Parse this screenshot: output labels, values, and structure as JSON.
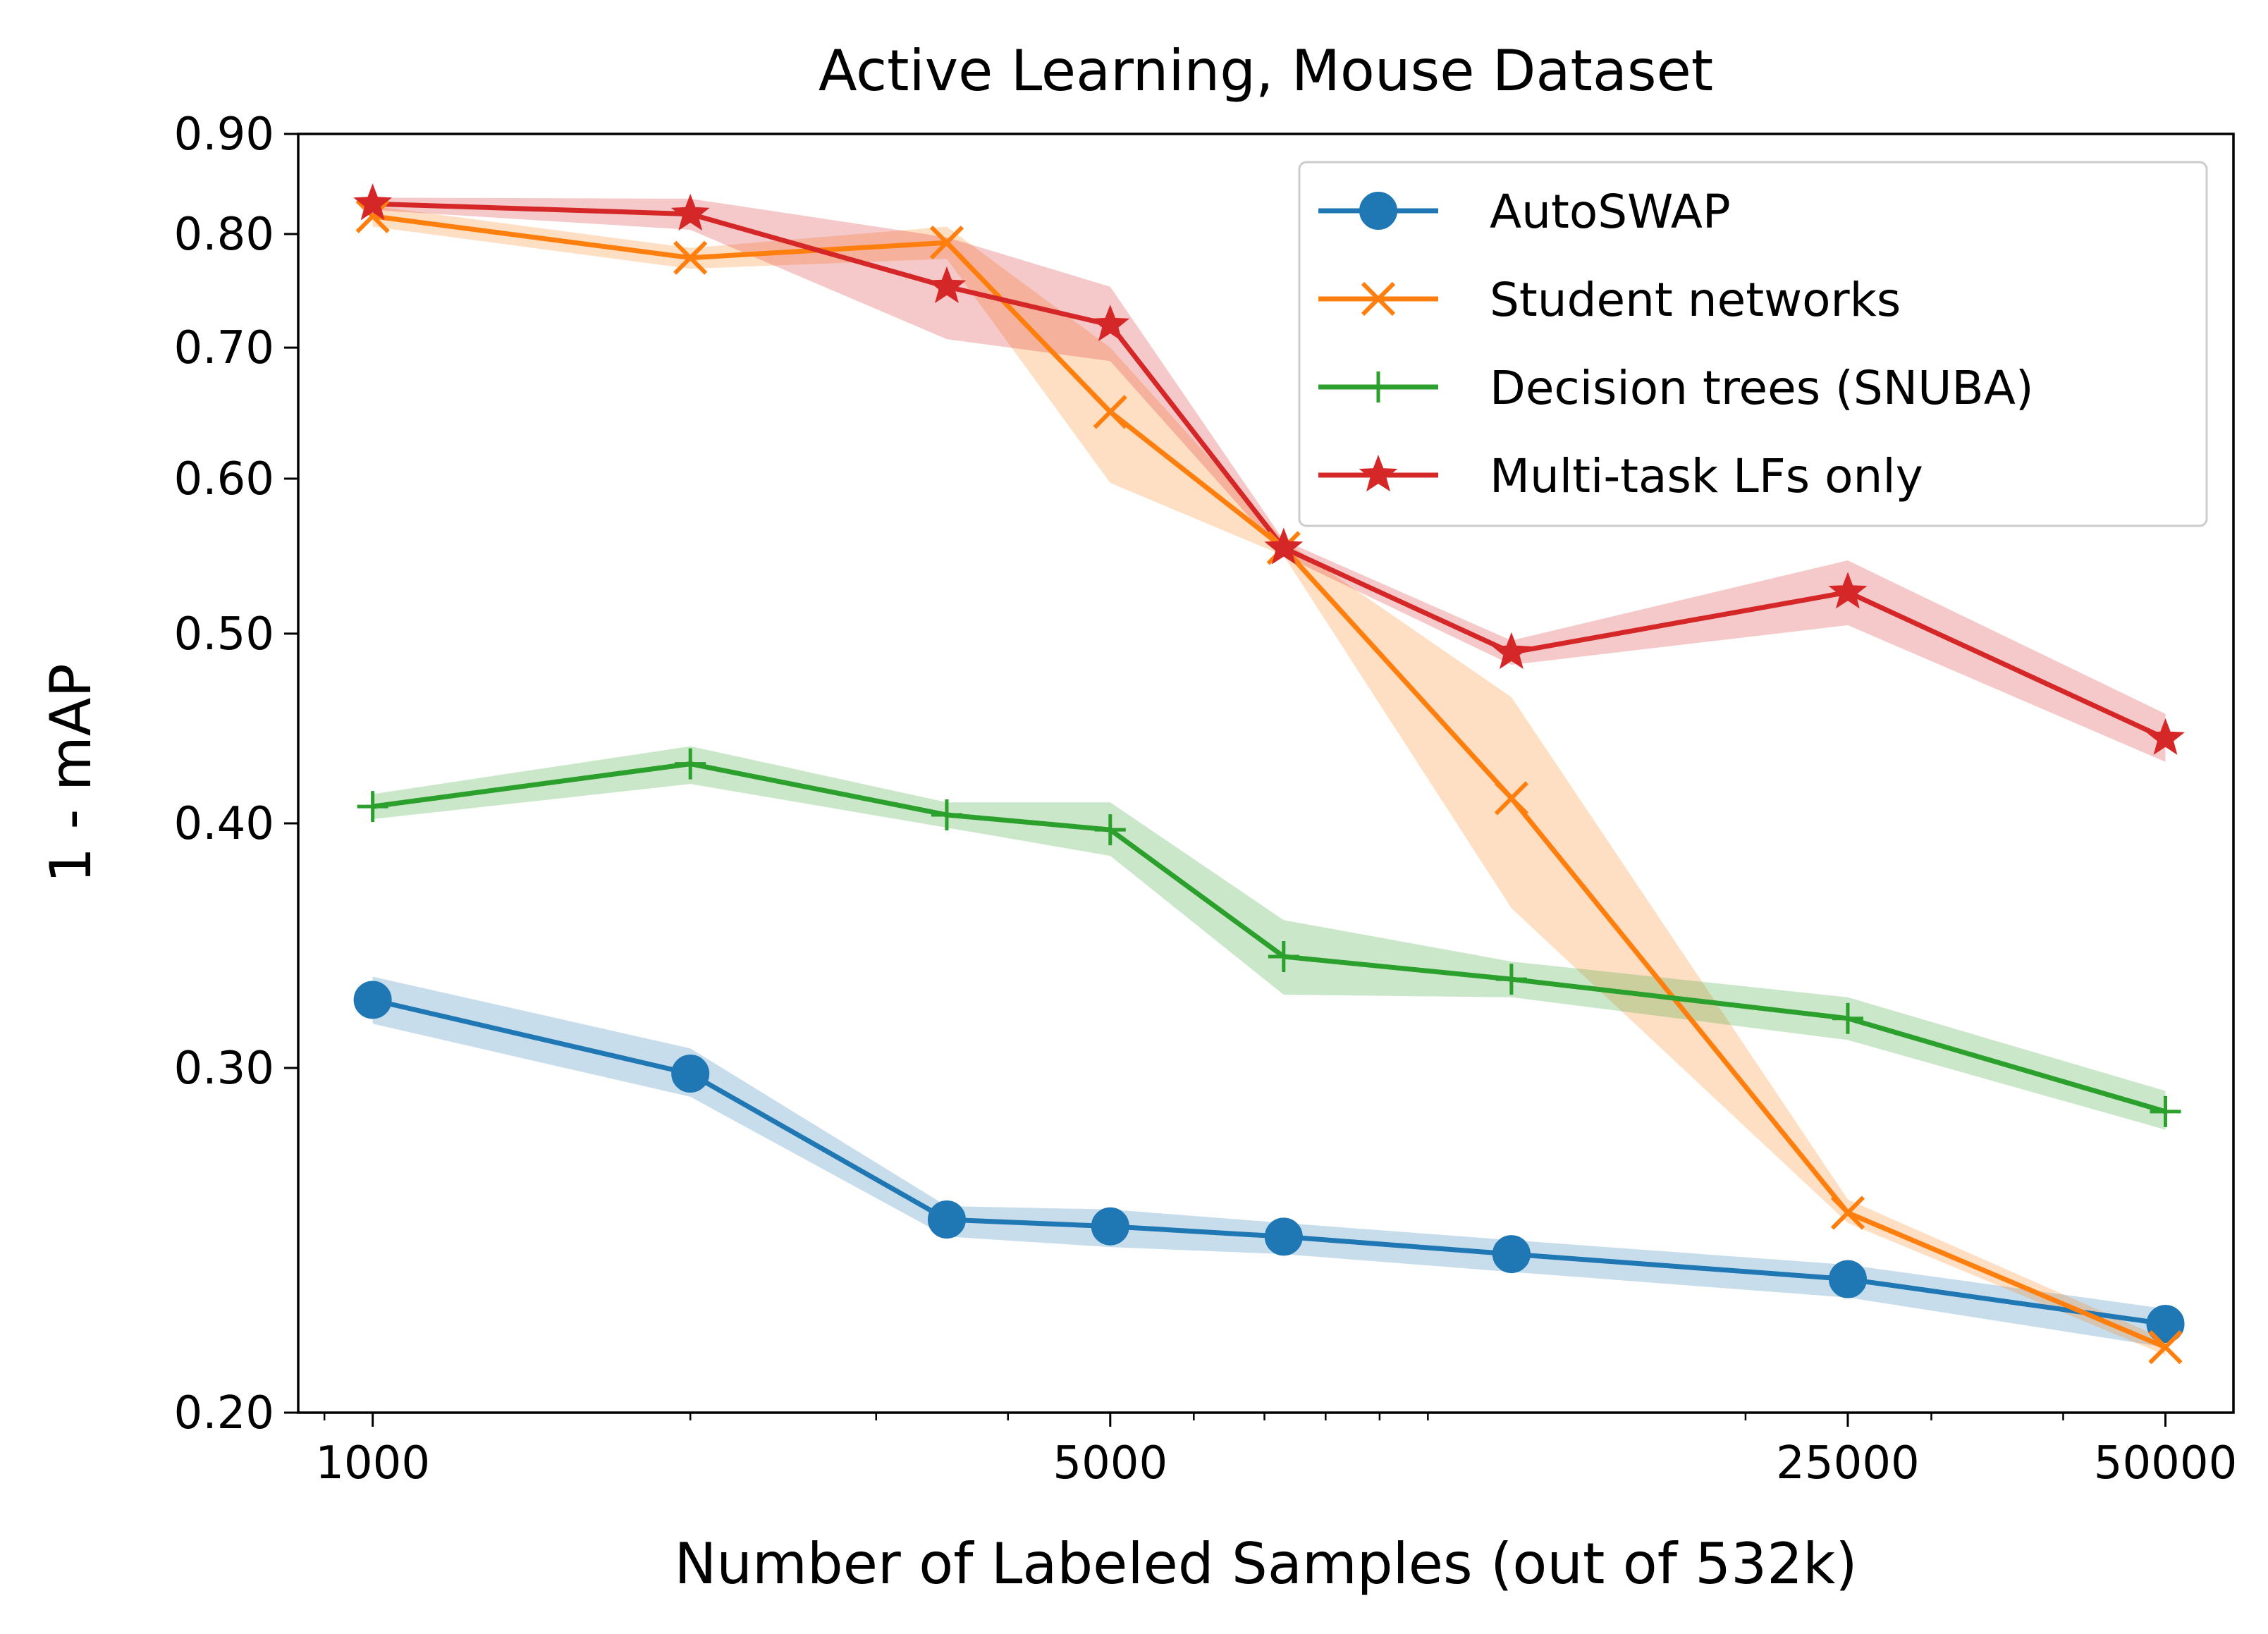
{
  "chart_data": {
    "type": "line",
    "title": "Active Learning, Mouse Dataset",
    "xlabel": "Number of Labeled Samples (out of 532k)",
    "ylabel": "1 - mAP",
    "xscale": "log",
    "yscale": "log",
    "xlim": [
      850,
      58000
    ],
    "ylim": [
      0.2,
      0.9
    ],
    "xticks": [
      1000,
      5000,
      25000,
      50000
    ],
    "xtick_labels": [
      "1000",
      "5000",
      "25000",
      "50000"
    ],
    "yticks": [
      0.2,
      0.3,
      0.4,
      0.5,
      0.6,
      0.7,
      0.8,
      0.9
    ],
    "ytick_labels": [
      "0.20",
      "0.30",
      "0.40",
      "0.50",
      "0.60",
      "0.70",
      "0.80",
      "0.90"
    ],
    "x": [
      1000,
      2000,
      3500,
      5000,
      7300,
      12000,
      25000,
      50000
    ],
    "legend_position": "upper right",
    "grid": false,
    "series": [
      {
        "name": "AutoSWAP",
        "color": "#1f77b4",
        "marker": "circle",
        "values": [
          0.325,
          0.298,
          0.251,
          0.249,
          0.246,
          0.241,
          0.234,
          0.222
        ],
        "lower": [
          0.316,
          0.29,
          0.246,
          0.243,
          0.241,
          0.236,
          0.229,
          0.216
        ],
        "upper": [
          0.334,
          0.307,
          0.255,
          0.254,
          0.25,
          0.245,
          0.238,
          0.226
        ]
      },
      {
        "name": "Student networks",
        "color": "#ff7f0e",
        "marker": "x",
        "values": [
          0.817,
          0.778,
          0.792,
          0.649,
          0.553,
          0.412,
          0.253,
          0.216
        ],
        "lower": [
          0.807,
          0.768,
          0.777,
          0.597,
          0.548,
          0.362,
          0.25,
          0.214
        ],
        "upper": [
          0.827,
          0.787,
          0.807,
          0.7,
          0.558,
          0.464,
          0.257,
          0.218
        ]
      },
      {
        "name": "Decision trees (SNUBA)",
        "color": "#2ca02c",
        "marker": "plus",
        "values": [
          0.408,
          0.429,
          0.404,
          0.397,
          0.342,
          0.333,
          0.318,
          0.285
        ],
        "lower": [
          0.402,
          0.419,
          0.398,
          0.385,
          0.327,
          0.326,
          0.31,
          0.279
        ],
        "upper": [
          0.414,
          0.438,
          0.41,
          0.41,
          0.357,
          0.34,
          0.326,
          0.292
        ]
      },
      {
        "name": "Multi-task LFs only",
        "color": "#d62728",
        "marker": "star",
        "values": [
          0.829,
          0.819,
          0.752,
          0.719,
          0.553,
          0.489,
          0.525,
          0.442
        ],
        "lower": [
          0.823,
          0.804,
          0.707,
          0.689,
          0.548,
          0.482,
          0.505,
          0.43
        ],
        "upper": [
          0.835,
          0.834,
          0.797,
          0.752,
          0.558,
          0.496,
          0.545,
          0.455
        ]
      }
    ]
  }
}
